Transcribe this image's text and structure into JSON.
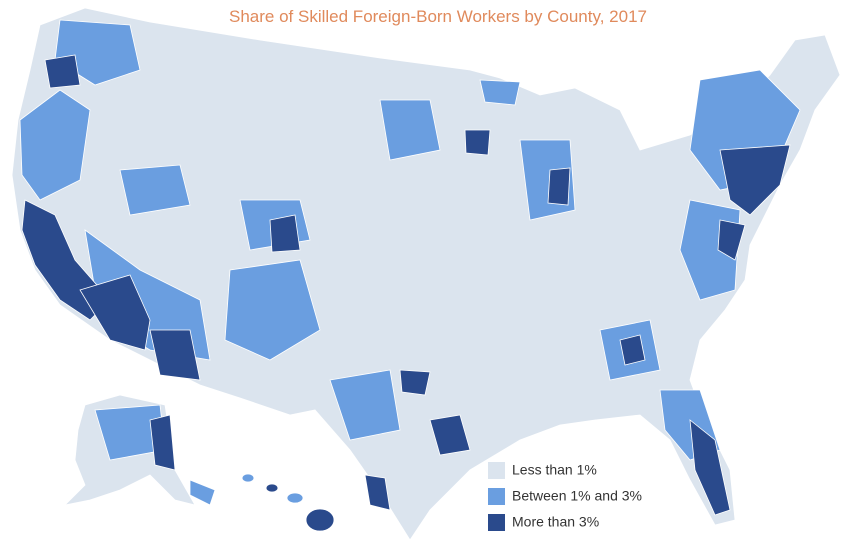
{
  "title": "Share of Skilled Foreign-Born Workers by County, 2017",
  "legend": [
    {
      "label": "Less than 1%",
      "color": "#dbe4ee"
    },
    {
      "label": "Between 1% and 3%",
      "color": "#6a9ee0"
    },
    {
      "label": "More than 3%",
      "color": "#2a4a8c"
    }
  ]
}
